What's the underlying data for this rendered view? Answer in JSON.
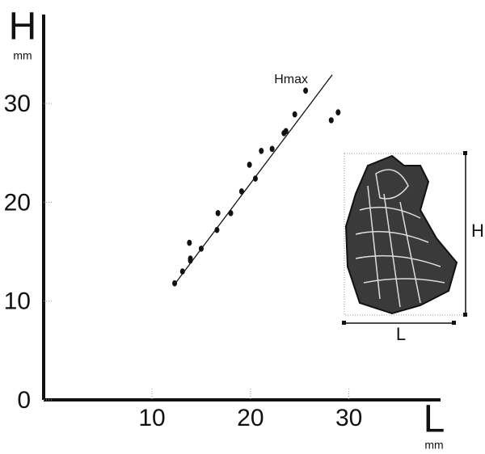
{
  "chart_data": {
    "type": "scatter",
    "x_label": "L",
    "x_unit": "mm",
    "y_label": "H",
    "y_unit": "mm",
    "xlim": [
      -1,
      39.3
    ],
    "ylim": [
      0,
      39
    ],
    "xticks": [
      10,
      20,
      30
    ],
    "yticks": [
      0,
      10,
      20,
      30
    ],
    "series": [
      {
        "color": "#111111",
        "x": [
          12.3,
          13.1,
          13.8,
          13.9,
          13.9,
          15.0,
          16.6,
          16.7,
          18.0,
          19.1,
          19.9,
          20.5,
          21.1,
          22.2,
          23.4,
          23.6,
          24.5,
          25.6,
          28.2,
          28.9
        ],
        "values": [
          11.8,
          13.0,
          15.9,
          14.3,
          14.1,
          15.3,
          17.2,
          18.9,
          18.9,
          21.1,
          23.8,
          22.4,
          25.2,
          25.4,
          27.0,
          27.2,
          28.9,
          31.3,
          28.3,
          29.1
        ]
      }
    ],
    "trend_line": {
      "name": "Hmax",
      "color": "#111111",
      "x": [
        12.3,
        28.3
      ],
      "values": [
        11.7,
        32.9
      ]
    },
    "inset": {
      "width_label": "L",
      "height_label": "H"
    }
  }
}
